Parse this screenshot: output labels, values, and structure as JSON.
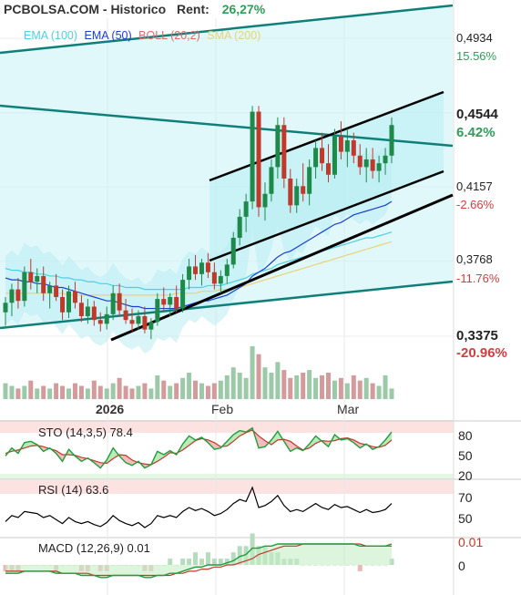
{
  "header": {
    "title": "PCBOLSA.COM - Historico",
    "rent_label": "Rent:",
    "rent_value": "26,27%"
  },
  "legend": [
    {
      "label": "EMA (100)",
      "color": "#4dd0e1"
    },
    {
      "label": "EMA (50)",
      "color": "#1a3fd1"
    },
    {
      "label": "BOLL (20,2)",
      "color": "#e06a6a"
    },
    {
      "label": "SMA (200)",
      "color": "#e8d27a"
    }
  ],
  "price_axis": [
    {
      "price": "0,4934",
      "pct": "15.56%",
      "pct_color": "#2e9e5a",
      "bold": false
    },
    {
      "price": "0,4544",
      "pct": "6.42%",
      "pct_color": "#2e9e5a",
      "bold": true
    },
    {
      "price": "0,4157",
      "pct": "-2.66%",
      "pct_color": "#d04040",
      "bold": false
    },
    {
      "price": "0,3768",
      "pct": "-11.76%",
      "pct_color": "#d04040",
      "bold": false
    },
    {
      "price": "0,3375",
      "pct": "-20.96%",
      "pct_color": "#d04040",
      "bold": true
    }
  ],
  "x_labels": [
    {
      "text": "2026",
      "bold": true
    },
    {
      "text": "Feb",
      "bold": false
    },
    {
      "text": "Mar",
      "bold": false
    }
  ],
  "sto": {
    "title": "STO (14,3,5) 78.4",
    "ticks": [
      "80",
      "50",
      "20"
    ]
  },
  "rsi": {
    "title": "RSI (14) 63.6",
    "ticks": [
      "70",
      "50"
    ]
  },
  "macd": {
    "title": "MACD (12,26,9) 0.01",
    "ticks": [
      "0.01",
      "0"
    ]
  },
  "colors": {
    "up": "#1e8a4a",
    "down": "#c0392b",
    "sto_k": "#1e9e3e",
    "sto_d": "#c0392b",
    "rsi_line": "#000000",
    "macd_line": "#1e9e3e",
    "signal_line": "#c0392b"
  },
  "chart_data": {
    "type": "candlestick",
    "price_range": [
      0.33,
      0.51
    ],
    "candles": [
      [
        0.35,
        0.358,
        0.343,
        0.355
      ],
      [
        0.355,
        0.365,
        0.348,
        0.362
      ],
      [
        0.362,
        0.368,
        0.352,
        0.356
      ],
      [
        0.356,
        0.374,
        0.353,
        0.371
      ],
      [
        0.371,
        0.378,
        0.362,
        0.366
      ],
      [
        0.366,
        0.373,
        0.36,
        0.369
      ],
      [
        0.369,
        0.374,
        0.356,
        0.36
      ],
      [
        0.36,
        0.366,
        0.352,
        0.364
      ],
      [
        0.364,
        0.37,
        0.356,
        0.358
      ],
      [
        0.358,
        0.362,
        0.346,
        0.35
      ],
      [
        0.35,
        0.364,
        0.347,
        0.361
      ],
      [
        0.361,
        0.366,
        0.352,
        0.355
      ],
      [
        0.355,
        0.359,
        0.345,
        0.348
      ],
      [
        0.348,
        0.357,
        0.344,
        0.353
      ],
      [
        0.353,
        0.356,
        0.343,
        0.346
      ],
      [
        0.346,
        0.35,
        0.34,
        0.344
      ],
      [
        0.344,
        0.353,
        0.341,
        0.349
      ],
      [
        0.349,
        0.364,
        0.346,
        0.36
      ],
      [
        0.36,
        0.365,
        0.348,
        0.351
      ],
      [
        0.351,
        0.357,
        0.344,
        0.346
      ],
      [
        0.346,
        0.352,
        0.34,
        0.344
      ],
      [
        0.344,
        0.351,
        0.341,
        0.348
      ],
      [
        0.348,
        0.353,
        0.339,
        0.341
      ],
      [
        0.341,
        0.347,
        0.336,
        0.345
      ],
      [
        0.345,
        0.36,
        0.343,
        0.357
      ],
      [
        0.357,
        0.363,
        0.35,
        0.354
      ],
      [
        0.354,
        0.36,
        0.348,
        0.358
      ],
      [
        0.358,
        0.364,
        0.35,
        0.352
      ],
      [
        0.352,
        0.37,
        0.35,
        0.367
      ],
      [
        0.367,
        0.378,
        0.362,
        0.374
      ],
      [
        0.374,
        0.38,
        0.367,
        0.37
      ],
      [
        0.37,
        0.378,
        0.364,
        0.376
      ],
      [
        0.376,
        0.381,
        0.368,
        0.371
      ],
      [
        0.371,
        0.376,
        0.362,
        0.365
      ],
      [
        0.365,
        0.372,
        0.36,
        0.369
      ],
      [
        0.369,
        0.378,
        0.365,
        0.375
      ],
      [
        0.375,
        0.392,
        0.373,
        0.389
      ],
      [
        0.389,
        0.404,
        0.385,
        0.4
      ],
      [
        0.4,
        0.412,
        0.392,
        0.408
      ],
      [
        0.408,
        0.458,
        0.404,
        0.455
      ],
      [
        0.455,
        0.458,
        0.4,
        0.405
      ],
      [
        0.405,
        0.418,
        0.398,
        0.412
      ],
      [
        0.412,
        0.43,
        0.408,
        0.426
      ],
      [
        0.426,
        0.452,
        0.42,
        0.448
      ],
      [
        0.448,
        0.452,
        0.415,
        0.42
      ],
      [
        0.42,
        0.425,
        0.402,
        0.406
      ],
      [
        0.406,
        0.42,
        0.402,
        0.416
      ],
      [
        0.416,
        0.428,
        0.408,
        0.412
      ],
      [
        0.412,
        0.43,
        0.406,
        0.426
      ],
      [
        0.426,
        0.44,
        0.42,
        0.436
      ],
      [
        0.436,
        0.444,
        0.424,
        0.428
      ],
      [
        0.428,
        0.438,
        0.418,
        0.422
      ],
      [
        0.422,
        0.446,
        0.42,
        0.442
      ],
      [
        0.442,
        0.45,
        0.43,
        0.434
      ],
      [
        0.434,
        0.446,
        0.426,
        0.44
      ],
      [
        0.44,
        0.444,
        0.428,
        0.432
      ],
      [
        0.432,
        0.438,
        0.422,
        0.426
      ],
      [
        0.426,
        0.436,
        0.418,
        0.43
      ],
      [
        0.43,
        0.436,
        0.42,
        0.424
      ],
      [
        0.424,
        0.432,
        0.418,
        0.428
      ],
      [
        0.428,
        0.436,
        0.422,
        0.432
      ],
      [
        0.432,
        0.452,
        0.428,
        0.448
      ]
    ],
    "volume": [
      6,
      5,
      4,
      5,
      7,
      4,
      5,
      4,
      6,
      5,
      4,
      6,
      5,
      4,
      7,
      5,
      4,
      6,
      8,
      5,
      4,
      5,
      6,
      4,
      9,
      7,
      5,
      6,
      8,
      10,
      7,
      6,
      5,
      6,
      7,
      9,
      12,
      10,
      8,
      20,
      17,
      12,
      10,
      14,
      11,
      8,
      9,
      10,
      11,
      8,
      9,
      10,
      7,
      8,
      6,
      9,
      7,
      8,
      6,
      5,
      9,
      4
    ],
    "ema100": [
      0.373,
      0.372,
      0.372,
      0.371,
      0.371,
      0.37,
      0.37,
      0.369,
      0.369,
      0.368,
      0.368,
      0.367,
      0.367,
      0.366,
      0.366,
      0.365,
      0.365,
      0.364,
      0.364,
      0.363,
      0.363,
      0.363,
      0.362,
      0.362,
      0.362,
      0.362,
      0.362,
      0.362,
      0.362,
      0.363,
      0.363,
      0.363,
      0.364,
      0.364,
      0.364,
      0.365,
      0.366,
      0.367,
      0.368,
      0.37,
      0.371,
      0.372,
      0.373,
      0.375,
      0.376,
      0.377,
      0.378,
      0.379,
      0.38,
      0.381,
      0.382,
      0.383,
      0.384,
      0.385,
      0.386,
      0.387,
      0.388,
      0.389,
      0.389,
      0.39,
      0.391,
      0.392
    ],
    "ema50": [
      0.368,
      0.367,
      0.367,
      0.366,
      0.366,
      0.365,
      0.365,
      0.364,
      0.363,
      0.363,
      0.362,
      0.361,
      0.36,
      0.359,
      0.358,
      0.357,
      0.356,
      0.356,
      0.355,
      0.354,
      0.353,
      0.353,
      0.352,
      0.352,
      0.352,
      0.352,
      0.352,
      0.352,
      0.353,
      0.354,
      0.355,
      0.356,
      0.356,
      0.357,
      0.358,
      0.359,
      0.361,
      0.363,
      0.365,
      0.369,
      0.371,
      0.373,
      0.376,
      0.379,
      0.381,
      0.382,
      0.384,
      0.386,
      0.388,
      0.39,
      0.392,
      0.394,
      0.396,
      0.397,
      0.399,
      0.401,
      0.402,
      0.403,
      0.404,
      0.405,
      0.406,
      0.408
    ],
    "sma200": [
      0.36,
      0.36,
      0.36,
      0.36,
      0.36,
      0.36,
      0.36,
      0.36,
      0.36,
      0.36,
      0.359,
      0.359,
      0.359,
      0.359,
      0.359,
      0.359,
      0.359,
      0.359,
      0.359,
      0.359,
      0.359,
      0.359,
      0.359,
      0.359,
      0.359,
      0.359,
      0.359,
      0.36,
      0.36,
      0.36,
      0.36,
      0.361,
      0.361,
      0.361,
      0.362,
      0.362,
      0.363,
      0.363,
      0.364,
      0.365,
      0.366,
      0.367,
      0.368,
      0.369,
      0.37,
      0.371,
      0.372,
      0.373,
      0.374,
      0.375,
      0.376,
      0.377,
      0.378,
      0.379,
      0.38,
      0.381,
      0.382,
      0.383,
      0.384,
      0.385,
      0.386,
      0.387
    ],
    "sto_k": [
      48,
      60,
      52,
      68,
      70,
      65,
      55,
      60,
      52,
      40,
      58,
      48,
      40,
      45,
      38,
      30,
      42,
      60,
      48,
      38,
      34,
      40,
      30,
      35,
      55,
      50,
      56,
      50,
      66,
      78,
      72,
      76,
      68,
      58,
      60,
      70,
      80,
      86,
      84,
      90,
      60,
      62,
      72,
      85,
      70,
      55,
      60,
      56,
      66,
      78,
      70,
      62,
      80,
      72,
      74,
      68,
      60,
      66,
      58,
      62,
      72,
      84
    ],
    "sto_d": [
      52,
      55,
      57,
      60,
      63,
      64,
      62,
      59,
      56,
      50,
      50,
      49,
      46,
      44,
      41,
      38,
      37,
      44,
      50,
      49,
      42,
      38,
      36,
      35,
      40,
      46,
      53,
      52,
      57,
      64,
      71,
      74,
      72,
      68,
      62,
      63,
      70,
      78,
      83,
      87,
      78,
      71,
      65,
      72,
      73,
      70,
      63,
      57,
      60,
      67,
      71,
      70,
      71,
      74,
      75,
      72,
      67,
      65,
      62,
      61,
      64,
      72
    ],
    "rsi": [
      46,
      52,
      50,
      56,
      55,
      54,
      50,
      52,
      48,
      44,
      50,
      46,
      44,
      46,
      43,
      41,
      45,
      52,
      47,
      44,
      42,
      45,
      40,
      44,
      52,
      50,
      52,
      50,
      56,
      60,
      57,
      59,
      56,
      52,
      54,
      58,
      64,
      68,
      66,
      80,
      60,
      62,
      66,
      72,
      62,
      56,
      58,
      56,
      60,
      64,
      60,
      58,
      63,
      60,
      61,
      58,
      55,
      58,
      55,
      56,
      58,
      64
    ],
    "macd": [
      -0.004,
      -0.004,
      -0.004,
      -0.003,
      -0.003,
      -0.003,
      -0.003,
      -0.003,
      -0.004,
      -0.004,
      -0.004,
      -0.004,
      -0.005,
      -0.005,
      -0.005,
      -0.006,
      -0.006,
      -0.005,
      -0.005,
      -0.005,
      -0.005,
      -0.005,
      -0.006,
      -0.006,
      -0.005,
      -0.005,
      -0.004,
      -0.004,
      -0.003,
      -0.002,
      -0.001,
      -0.001,
      0.0,
      0.0,
      0.0,
      0.001,
      0.002,
      0.004,
      0.005,
      0.008,
      0.008,
      0.009,
      0.009,
      0.01,
      0.01,
      0.01,
      0.01,
      0.01,
      0.01,
      0.01,
      0.01,
      0.01,
      0.01,
      0.01,
      0.01,
      0.01,
      0.009,
      0.009,
      0.009,
      0.009,
      0.009,
      0.01
    ],
    "signal": [
      -0.003,
      -0.003,
      -0.003,
      -0.003,
      -0.003,
      -0.003,
      -0.003,
      -0.003,
      -0.003,
      -0.004,
      -0.004,
      -0.004,
      -0.004,
      -0.004,
      -0.005,
      -0.005,
      -0.005,
      -0.005,
      -0.005,
      -0.005,
      -0.005,
      -0.005,
      -0.005,
      -0.005,
      -0.005,
      -0.005,
      -0.005,
      -0.004,
      -0.004,
      -0.003,
      -0.003,
      -0.002,
      -0.002,
      -0.001,
      -0.001,
      0.0,
      0.0,
      0.001,
      0.002,
      0.003,
      0.005,
      0.006,
      0.007,
      0.008,
      0.009,
      0.009,
      0.009,
      0.01,
      0.01,
      0.01,
      0.01,
      0.01,
      0.01,
      0.01,
      0.01,
      0.01,
      0.01,
      0.009,
      0.009,
      0.009,
      0.009,
      0.009
    ]
  }
}
